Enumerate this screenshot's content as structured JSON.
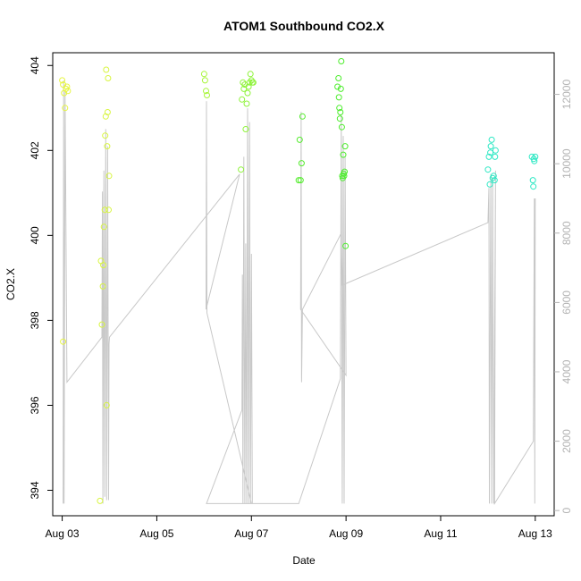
{
  "chart_data": {
    "type": "scatter",
    "title": "ATOM1 Southbound CO2.X",
    "xlabel": "Date",
    "ylabel": "CO2.X",
    "x_ticks": [
      "Aug 03",
      "Aug 05",
      "Aug 07",
      "Aug 09",
      "Aug 11",
      "Aug 13"
    ],
    "y_ticks": [
      "394",
      "396",
      "398",
      "400",
      "402",
      "404"
    ],
    "y2_ticks": [
      "0",
      "2000",
      "4000",
      "6000",
      "8000",
      "10000",
      "12000"
    ],
    "xlim_days": [
      2.8,
      13.4
    ],
    "ylim": [
      393.4,
      404.3
    ],
    "y2lim": [
      -150,
      13200
    ],
    "grid": false,
    "legend": "none",
    "colors": {
      "points_early": "#e6f542",
      "points_mid": "#a8f53a",
      "points_green": "#4ded2d",
      "points_teal": "#2de8c4",
      "line": "#c8c8c8",
      "axis_right": "#b3b3b3"
    },
    "points": [
      {
        "x": 3.0,
        "y": 403.65,
        "c": "#e6f542"
      },
      {
        "x": 3.02,
        "y": 403.55,
        "c": "#e6f542"
      },
      {
        "x": 3.04,
        "y": 403.35,
        "c": "#e6f542"
      },
      {
        "x": 3.06,
        "y": 403.0,
        "c": "#e6f542"
      },
      {
        "x": 3.08,
        "y": 403.45,
        "c": "#e6f542"
      },
      {
        "x": 3.1,
        "y": 403.5,
        "c": "#e6f542"
      },
      {
        "x": 3.12,
        "y": 403.4,
        "c": "#e6f542"
      },
      {
        "x": 3.02,
        "y": 397.5,
        "c": "#e6f542"
      },
      {
        "x": 3.8,
        "y": 393.75,
        "c": "#d8f540"
      },
      {
        "x": 3.82,
        "y": 399.4,
        "c": "#d8f540"
      },
      {
        "x": 3.84,
        "y": 397.9,
        "c": "#d8f540"
      },
      {
        "x": 3.86,
        "y": 398.8,
        "c": "#d8f540"
      },
      {
        "x": 3.87,
        "y": 399.3,
        "c": "#d8f540"
      },
      {
        "x": 3.88,
        "y": 400.2,
        "c": "#d8f540"
      },
      {
        "x": 3.9,
        "y": 400.6,
        "c": "#d8f540"
      },
      {
        "x": 3.91,
        "y": 402.35,
        "c": "#d8f540"
      },
      {
        "x": 3.92,
        "y": 402.8,
        "c": "#d8f540"
      },
      {
        "x": 3.93,
        "y": 403.9,
        "c": "#d8f540"
      },
      {
        "x": 3.94,
        "y": 396.0,
        "c": "#d8f540"
      },
      {
        "x": 3.95,
        "y": 402.1,
        "c": "#d8f540"
      },
      {
        "x": 3.96,
        "y": 402.9,
        "c": "#d8f540"
      },
      {
        "x": 3.97,
        "y": 403.7,
        "c": "#d8f540"
      },
      {
        "x": 3.98,
        "y": 400.6,
        "c": "#d8f540"
      },
      {
        "x": 3.99,
        "y": 401.4,
        "c": "#d8f540"
      },
      {
        "x": 6.0,
        "y": 403.8,
        "c": "#a8f53a"
      },
      {
        "x": 6.02,
        "y": 403.65,
        "c": "#a8f53a"
      },
      {
        "x": 6.04,
        "y": 403.4,
        "c": "#a8f53a"
      },
      {
        "x": 6.06,
        "y": 403.3,
        "c": "#a8f53a"
      },
      {
        "x": 6.78,
        "y": 401.55,
        "c": "#8ef33a"
      },
      {
        "x": 6.8,
        "y": 403.2,
        "c": "#8ef33a"
      },
      {
        "x": 6.82,
        "y": 403.6,
        "c": "#8ef33a"
      },
      {
        "x": 6.84,
        "y": 403.45,
        "c": "#8ef33a"
      },
      {
        "x": 6.86,
        "y": 403.55,
        "c": "#8ef33a"
      },
      {
        "x": 6.88,
        "y": 402.5,
        "c": "#8ef33a"
      },
      {
        "x": 6.9,
        "y": 403.1,
        "c": "#8ef33a"
      },
      {
        "x": 6.92,
        "y": 403.35,
        "c": "#8ef33a"
      },
      {
        "x": 6.94,
        "y": 403.5,
        "c": "#8ef33a"
      },
      {
        "x": 6.96,
        "y": 403.6,
        "c": "#8ef33a"
      },
      {
        "x": 6.98,
        "y": 403.8,
        "c": "#8ef33a"
      },
      {
        "x": 7.0,
        "y": 403.65,
        "c": "#8ef33a"
      },
      {
        "x": 7.02,
        "y": 403.6,
        "c": "#8ef33a"
      },
      {
        "x": 7.04,
        "y": 403.6,
        "c": "#8ef33a"
      },
      {
        "x": 8.0,
        "y": 401.3,
        "c": "#55ec2f"
      },
      {
        "x": 8.02,
        "y": 402.25,
        "c": "#55ec2f"
      },
      {
        "x": 8.04,
        "y": 401.3,
        "c": "#55ec2f"
      },
      {
        "x": 8.06,
        "y": 401.7,
        "c": "#55ec2f"
      },
      {
        "x": 8.08,
        "y": 402.8,
        "c": "#55ec2f"
      },
      {
        "x": 8.82,
        "y": 403.5,
        "c": "#4ded2d"
      },
      {
        "x": 8.84,
        "y": 403.7,
        "c": "#4ded2d"
      },
      {
        "x": 8.85,
        "y": 403.25,
        "c": "#4ded2d"
      },
      {
        "x": 8.86,
        "y": 403.0,
        "c": "#4ded2d"
      },
      {
        "x": 8.87,
        "y": 402.75,
        "c": "#4ded2d"
      },
      {
        "x": 8.88,
        "y": 402.9,
        "c": "#4ded2d"
      },
      {
        "x": 8.89,
        "y": 403.45,
        "c": "#4ded2d"
      },
      {
        "x": 8.9,
        "y": 404.1,
        "c": "#4ded2d"
      },
      {
        "x": 8.91,
        "y": 402.55,
        "c": "#4ded2d"
      },
      {
        "x": 8.92,
        "y": 401.4,
        "c": "#4ded2d"
      },
      {
        "x": 8.93,
        "y": 401.35,
        "c": "#4ded2d"
      },
      {
        "x": 8.94,
        "y": 401.9,
        "c": "#4ded2d"
      },
      {
        "x": 8.95,
        "y": 401.45,
        "c": "#4ded2d"
      },
      {
        "x": 8.96,
        "y": 401.4,
        "c": "#4ded2d"
      },
      {
        "x": 8.97,
        "y": 401.5,
        "c": "#4ded2d"
      },
      {
        "x": 8.98,
        "y": 402.1,
        "c": "#4ded2d"
      },
      {
        "x": 8.99,
        "y": 399.75,
        "c": "#4ded2d"
      },
      {
        "x": 12.0,
        "y": 401.55,
        "c": "#2de8c4"
      },
      {
        "x": 12.02,
        "y": 401.85,
        "c": "#2de8c4"
      },
      {
        "x": 12.04,
        "y": 401.2,
        "c": "#2de8c4"
      },
      {
        "x": 12.05,
        "y": 401.95,
        "c": "#2de8c4"
      },
      {
        "x": 12.06,
        "y": 402.1,
        "c": "#2de8c4"
      },
      {
        "x": 12.08,
        "y": 402.25,
        "c": "#2de8c4"
      },
      {
        "x": 12.1,
        "y": 401.35,
        "c": "#2de8c4"
      },
      {
        "x": 12.12,
        "y": 401.4,
        "c": "#2de8c4"
      },
      {
        "x": 12.14,
        "y": 401.3,
        "c": "#2de8c4"
      },
      {
        "x": 12.15,
        "y": 401.85,
        "c": "#2de8c4"
      },
      {
        "x": 12.16,
        "y": 402.0,
        "c": "#2de8c4"
      },
      {
        "x": 12.93,
        "y": 401.85,
        "c": "#2de8c4"
      },
      {
        "x": 12.95,
        "y": 401.3,
        "c": "#2de8c4"
      },
      {
        "x": 12.96,
        "y": 401.15,
        "c": "#2de8c4"
      },
      {
        "x": 12.97,
        "y": 401.8,
        "c": "#2de8c4"
      },
      {
        "x": 12.98,
        "y": 401.75,
        "c": "#2de8c4"
      },
      {
        "x": 13.0,
        "y": 401.85,
        "c": "#2de8c4"
      }
    ],
    "y2_line": [
      [
        3.02,
        200
      ],
      [
        3.03,
        12400
      ],
      [
        3.04,
        200
      ],
      [
        3.06,
        12100
      ],
      [
        3.1,
        3700
      ],
      [
        3.84,
        5000
      ],
      [
        3.85,
        9200
      ],
      [
        3.86,
        200
      ],
      [
        3.88,
        9800
      ],
      [
        3.9,
        400
      ],
      [
        3.92,
        11000
      ],
      [
        3.94,
        300
      ],
      [
        3.96,
        10500
      ],
      [
        3.98,
        300
      ],
      [
        3.99,
        4800
      ],
      [
        4.0,
        5000
      ],
      [
        6.75,
        9700
      ],
      [
        6.04,
        5800
      ],
      [
        6.05,
        11800
      ],
      [
        6.06,
        5700
      ],
      [
        7.0,
        200
      ],
      [
        6.05,
        200
      ],
      [
        6.8,
        2900
      ],
      [
        6.81,
        6800
      ],
      [
        6.82,
        200
      ],
      [
        6.84,
        10200
      ],
      [
        6.86,
        200
      ],
      [
        6.88,
        7700
      ],
      [
        6.9,
        200
      ],
      [
        6.92,
        11600
      ],
      [
        6.94,
        200
      ],
      [
        6.96,
        11200
      ],
      [
        6.98,
        200
      ],
      [
        7.0,
        7400
      ],
      [
        7.02,
        200
      ],
      [
        8.0,
        200
      ],
      [
        8.88,
        3800
      ],
      [
        8.9,
        11400
      ],
      [
        8.92,
        200
      ],
      [
        8.94,
        10800
      ],
      [
        8.96,
        200
      ],
      [
        8.98,
        10200
      ],
      [
        9.0,
        3900
      ],
      [
        8.04,
        5800
      ],
      [
        8.05,
        11500
      ],
      [
        8.06,
        3700
      ],
      [
        8.08,
        5800
      ],
      [
        8.9,
        8000
      ],
      [
        8.92,
        6500
      ],
      [
        12.0,
        8300
      ],
      [
        12.02,
        9300
      ],
      [
        12.03,
        200
      ],
      [
        12.06,
        9700
      ],
      [
        12.08,
        200
      ],
      [
        12.1,
        9600
      ],
      [
        12.12,
        200
      ],
      [
        12.16,
        9800
      ],
      [
        12.14,
        200
      ],
      [
        12.96,
        2000
      ],
      [
        12.98,
        9000
      ],
      [
        12.99,
        200
      ],
      [
        13.0,
        9000
      ]
    ]
  }
}
